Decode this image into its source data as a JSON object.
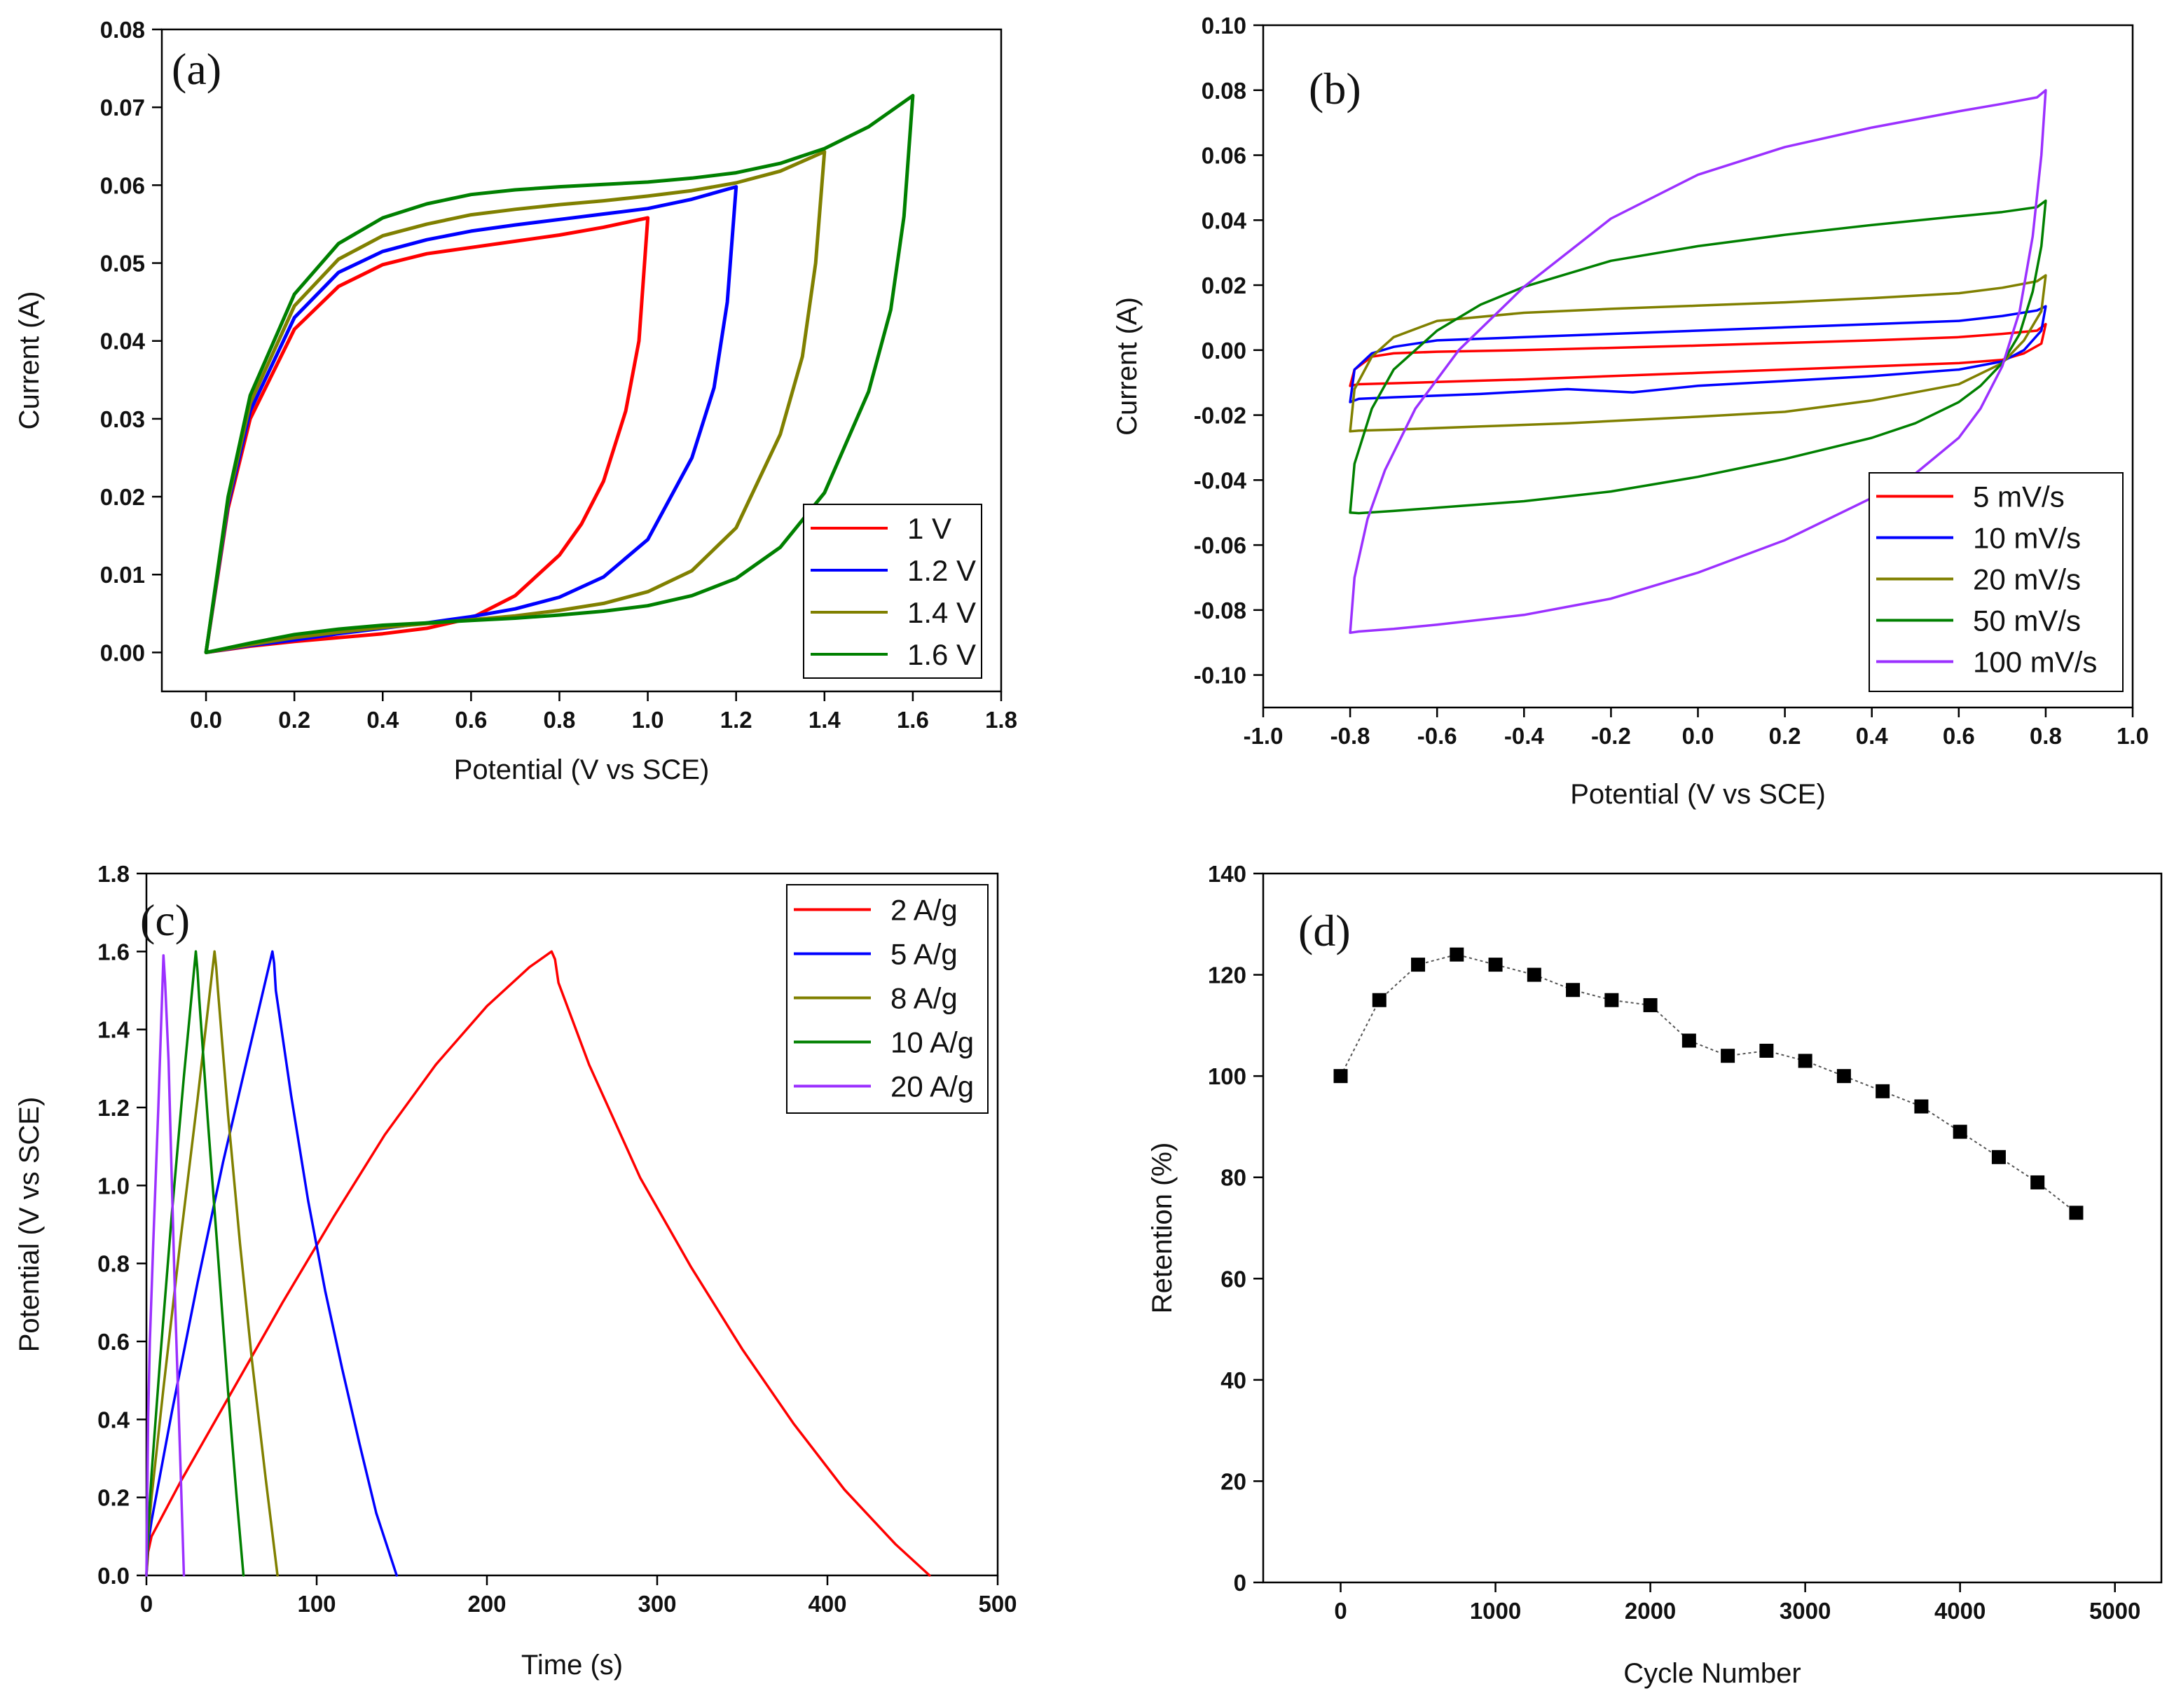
{
  "chart_data": [
    {
      "id": "a",
      "type": "line",
      "panel_label": "(a)",
      "xlabel": "Potential (V vs SCE)",
      "ylabel": "Current (A)",
      "xlim": [
        -0.1,
        1.8
      ],
      "ylim": [
        -0.005,
        0.08
      ],
      "xticks": [
        "0.0",
        "0.2",
        "0.4",
        "0.6",
        "0.8",
        "1.0",
        "1.2",
        "1.4",
        "1.6",
        "1.8"
      ],
      "yticks": [
        "0.00",
        "0.01",
        "0.02",
        "0.03",
        "0.04",
        "0.05",
        "0.06",
        "0.07",
        "0.08"
      ],
      "legend_position": "bottom-right",
      "series": [
        {
          "name": "1 V",
          "color": "#ff0000",
          "vmax": 1.0,
          "x": [
            0,
            0.05,
            0.1,
            0.2,
            0.3,
            0.4,
            0.5,
            0.6,
            0.7,
            0.8,
            0.9,
            1.0,
            0.98,
            0.95,
            0.9,
            0.85,
            0.8,
            0.7,
            0.6,
            0.5,
            0.4,
            0.3,
            0.2,
            0.1,
            0.0
          ],
          "y": [
            0,
            0.0185,
            0.03,
            0.0415,
            0.047,
            0.0498,
            0.0512,
            0.052,
            0.0528,
            0.0536,
            0.0546,
            0.0558,
            0.04,
            0.031,
            0.022,
            0.0165,
            0.0125,
            0.0073,
            0.0044,
            0.0031,
            0.0024,
            0.0019,
            0.0014,
            0.0008,
            0
          ]
        },
        {
          "name": "1.2 V",
          "color": "#0000ff",
          "vmax": 1.2,
          "x": [
            0,
            0.05,
            0.1,
            0.2,
            0.3,
            0.4,
            0.5,
            0.6,
            0.7,
            0.8,
            0.9,
            1.0,
            1.1,
            1.2,
            1.18,
            1.15,
            1.1,
            1.0,
            0.9,
            0.8,
            0.7,
            0.6,
            0.5,
            0.4,
            0.3,
            0.2,
            0.1,
            0.0
          ],
          "y": [
            0,
            0.019,
            0.031,
            0.043,
            0.0488,
            0.0515,
            0.053,
            0.0541,
            0.0549,
            0.0556,
            0.0563,
            0.057,
            0.0582,
            0.0598,
            0.045,
            0.034,
            0.025,
            0.0145,
            0.0097,
            0.0071,
            0.0056,
            0.0046,
            0.0038,
            0.0031,
            0.0024,
            0.0016,
            0.0009,
            0
          ]
        },
        {
          "name": "1.4 V",
          "color": "#808000",
          "vmax": 1.4,
          "x": [
            0,
            0.05,
            0.1,
            0.2,
            0.3,
            0.4,
            0.5,
            0.6,
            0.7,
            0.8,
            0.9,
            1.0,
            1.1,
            1.2,
            1.3,
            1.4,
            1.38,
            1.35,
            1.3,
            1.2,
            1.1,
            1.0,
            0.9,
            0.8,
            0.7,
            0.6,
            0.5,
            0.4,
            0.3,
            0.2,
            0.1,
            0.0
          ],
          "y": [
            0,
            0.0195,
            0.032,
            0.0445,
            0.0505,
            0.0535,
            0.055,
            0.0562,
            0.0569,
            0.0575,
            0.058,
            0.0586,
            0.0593,
            0.0603,
            0.0618,
            0.0643,
            0.05,
            0.038,
            0.028,
            0.016,
            0.0105,
            0.0078,
            0.0063,
            0.0054,
            0.0047,
            0.0042,
            0.0037,
            0.0032,
            0.0026,
            0.0019,
            0.001,
            0
          ]
        },
        {
          "name": "1.6 V",
          "color": "#008000",
          "vmax": 1.6,
          "x": [
            0,
            0.05,
            0.1,
            0.2,
            0.3,
            0.4,
            0.5,
            0.6,
            0.7,
            0.8,
            0.9,
            1.0,
            1.1,
            1.2,
            1.3,
            1.4,
            1.5,
            1.6,
            1.58,
            1.55,
            1.5,
            1.4,
            1.3,
            1.2,
            1.1,
            1.0,
            0.9,
            0.8,
            0.7,
            0.6,
            0.5,
            0.4,
            0.3,
            0.2,
            0.1,
            0.0
          ],
          "y": [
            0,
            0.02,
            0.033,
            0.046,
            0.0525,
            0.0558,
            0.0576,
            0.0588,
            0.0594,
            0.0598,
            0.0601,
            0.0604,
            0.0609,
            0.0616,
            0.0628,
            0.0647,
            0.0675,
            0.0715,
            0.056,
            0.044,
            0.0335,
            0.0205,
            0.0135,
            0.0095,
            0.0073,
            0.006,
            0.0053,
            0.0048,
            0.0044,
            0.0041,
            0.0038,
            0.0035,
            0.003,
            0.0023,
            0.0012,
            0
          ]
        }
      ]
    },
    {
      "id": "b",
      "type": "line",
      "panel_label": "(b)",
      "xlabel": "Potential (V vs SCE)",
      "ylabel": "Current (A)",
      "xlim": [
        -1.0,
        1.0
      ],
      "ylim": [
        -0.11,
        0.1
      ],
      "xticks": [
        "-1.0",
        "-0.8",
        "-0.6",
        "-0.4",
        "-0.2",
        "0.0",
        "0.2",
        "0.4",
        "0.6",
        "0.8",
        "1.0"
      ],
      "yticks": [
        "-0.10",
        "-0.08",
        "-0.06",
        "-0.04",
        "-0.02",
        "0.00",
        "0.02",
        "0.04",
        "0.06",
        "0.08",
        "0.10"
      ],
      "legend_position": "bottom-right",
      "series": [
        {
          "name": "5 mV/s",
          "color": "#ff0000",
          "x": [
            -0.8,
            -0.79,
            -0.75,
            -0.7,
            -0.6,
            -0.4,
            -0.2,
            0.0,
            0.2,
            0.4,
            0.6,
            0.7,
            0.78,
            0.8,
            0.79,
            0.75,
            0.7,
            0.6,
            0.4,
            0.2,
            0.0,
            -0.2,
            -0.4,
            -0.6,
            -0.7,
            -0.78,
            -0.8
          ],
          "y": [
            -0.011,
            -0.006,
            -0.002,
            -0.001,
            -0.0005,
            0.0,
            0.0007,
            0.0014,
            0.0022,
            0.003,
            0.004,
            0.005,
            0.006,
            0.008,
            0.002,
            -0.001,
            -0.003,
            -0.004,
            -0.005,
            -0.006,
            -0.007,
            -0.008,
            -0.009,
            -0.0098,
            -0.0102,
            -0.0105,
            -0.011
          ]
        },
        {
          "name": "10 mV/s",
          "color": "#0000ff",
          "x": [
            -0.8,
            -0.79,
            -0.75,
            -0.7,
            -0.6,
            -0.4,
            -0.2,
            0.0,
            0.2,
            0.4,
            0.6,
            0.7,
            0.78,
            0.8,
            0.79,
            0.75,
            0.7,
            0.6,
            0.4,
            0.2,
            0.0,
            -0.15,
            -0.3,
            -0.5,
            -0.7,
            -0.78,
            -0.8
          ],
          "y": [
            -0.016,
            -0.006,
            -0.001,
            0.001,
            0.003,
            0.004,
            0.005,
            0.006,
            0.007,
            0.008,
            0.009,
            0.0105,
            0.0122,
            0.0135,
            0.006,
            0.0,
            -0.0035,
            -0.006,
            -0.008,
            -0.0095,
            -0.011,
            -0.013,
            -0.012,
            -0.0135,
            -0.0145,
            -0.015,
            -0.016
          ]
        },
        {
          "name": "20 mV/s",
          "color": "#808000",
          "x": [
            -0.8,
            -0.79,
            -0.75,
            -0.7,
            -0.6,
            -0.4,
            -0.2,
            0.0,
            0.2,
            0.4,
            0.6,
            0.7,
            0.78,
            0.8,
            0.79,
            0.75,
            0.7,
            0.6,
            0.4,
            0.2,
            0.0,
            -0.15,
            -0.3,
            -0.5,
            -0.7,
            -0.78,
            -0.8
          ],
          "y": [
            -0.025,
            -0.012,
            -0.002,
            0.004,
            0.009,
            0.0115,
            0.0127,
            0.0137,
            0.0147,
            0.016,
            0.0175,
            0.0192,
            0.0212,
            0.023,
            0.012,
            0.003,
            -0.004,
            -0.0105,
            -0.0155,
            -0.019,
            -0.0205,
            -0.0215,
            -0.0225,
            -0.0235,
            -0.0245,
            -0.0248,
            -0.025
          ]
        },
        {
          "name": "50 mV/s",
          "color": "#008000",
          "x": [
            -0.8,
            -0.79,
            -0.75,
            -0.7,
            -0.6,
            -0.5,
            -0.4,
            -0.2,
            0.0,
            0.2,
            0.4,
            0.6,
            0.7,
            0.78,
            0.8,
            0.79,
            0.77,
            0.74,
            0.7,
            0.65,
            0.6,
            0.5,
            0.4,
            0.2,
            0.0,
            -0.2,
            -0.4,
            -0.6,
            -0.7,
            -0.78,
            -0.8
          ],
          "y": [
            -0.05,
            -0.035,
            -0.018,
            -0.006,
            0.006,
            0.014,
            0.0195,
            0.0275,
            0.032,
            0.0355,
            0.0385,
            0.0412,
            0.0425,
            0.044,
            0.046,
            0.032,
            0.018,
            0.005,
            -0.004,
            -0.011,
            -0.016,
            -0.0225,
            -0.027,
            -0.0335,
            -0.039,
            -0.0435,
            -0.0465,
            -0.0485,
            -0.0495,
            -0.0502,
            -0.05
          ]
        },
        {
          "name": "100 mV/s",
          "color": "#9b30ff",
          "x": [
            -0.8,
            -0.79,
            -0.76,
            -0.72,
            -0.65,
            -0.55,
            -0.4,
            -0.2,
            0.0,
            0.2,
            0.4,
            0.6,
            0.7,
            0.78,
            0.8,
            0.79,
            0.77,
            0.74,
            0.7,
            0.65,
            0.6,
            0.5,
            0.4,
            0.2,
            0.0,
            -0.2,
            -0.4,
            -0.6,
            -0.7,
            -0.78,
            -0.8
          ],
          "y": [
            -0.087,
            -0.07,
            -0.052,
            -0.037,
            -0.018,
            0.0,
            0.0195,
            0.0405,
            0.054,
            0.0625,
            0.0685,
            0.0735,
            0.0758,
            0.0778,
            0.08,
            0.06,
            0.035,
            0.012,
            -0.005,
            -0.018,
            -0.027,
            -0.038,
            -0.0455,
            -0.0585,
            -0.0685,
            -0.0765,
            -0.0815,
            -0.0845,
            -0.0858,
            -0.0866,
            -0.087
          ]
        }
      ]
    },
    {
      "id": "c",
      "type": "line",
      "panel_label": "(c)",
      "xlabel": "Time (s)",
      "ylabel": "Potential (V vs SCE)",
      "xlim": [
        0,
        500
      ],
      "ylim": [
        0,
        1.8
      ],
      "xticks": [
        "0",
        "100",
        "200",
        "300",
        "400",
        "500"
      ],
      "yticks": [
        "0.0",
        "0.2",
        "0.4",
        "0.6",
        "0.8",
        "1.0",
        "1.2",
        "1.4",
        "1.6",
        "1.8"
      ],
      "legend_position": "top-right",
      "series": [
        {
          "name": "2 A/g",
          "color": "#ff0000",
          "x": [
            0,
            1,
            3,
            20,
            50,
            80,
            110,
            140,
            170,
            200,
            225,
            238,
            240,
            242,
            260,
            290,
            320,
            350,
            380,
            410,
            440,
            460
          ],
          "y": [
            0,
            0.06,
            0.1,
            0.24,
            0.47,
            0.7,
            0.92,
            1.13,
            1.31,
            1.46,
            1.56,
            1.6,
            1.58,
            1.52,
            1.31,
            1.02,
            0.79,
            0.58,
            0.39,
            0.22,
            0.08,
            0
          ]
        },
        {
          "name": "5 A/g",
          "color": "#0000ff",
          "x": [
            0,
            1,
            3,
            15,
            30,
            45,
            60,
            74,
            75,
            76,
            85,
            95,
            105,
            115,
            125,
            135,
            147
          ],
          "y": [
            0,
            0.08,
            0.14,
            0.42,
            0.75,
            1.06,
            1.34,
            1.6,
            1.57,
            1.5,
            1.23,
            0.96,
            0.73,
            0.53,
            0.34,
            0.16,
            0
          ]
        },
        {
          "name": "8 A/g",
          "color": "#808000",
          "x": [
            0,
            1,
            3,
            10,
            20,
            30,
            40,
            41,
            42,
            48,
            55,
            62,
            70,
            77
          ],
          "y": [
            0,
            0.1,
            0.2,
            0.48,
            0.86,
            1.22,
            1.6,
            1.56,
            1.5,
            1.18,
            0.85,
            0.55,
            0.25,
            0
          ]
        },
        {
          "name": "10 A/g",
          "color": "#008000",
          "x": [
            0,
            1,
            3,
            8,
            15,
            22,
            29,
            30,
            31,
            36,
            42,
            48,
            53,
            57
          ],
          "y": [
            0,
            0.12,
            0.26,
            0.55,
            0.93,
            1.28,
            1.6,
            1.55,
            1.48,
            1.17,
            0.82,
            0.47,
            0.2,
            0
          ]
        },
        {
          "name": "20 A/g",
          "color": "#9b30ff",
          "x": [
            0,
            1,
            2,
            4,
            7,
            10,
            11,
            13,
            15,
            17,
            20,
            22
          ],
          "y": [
            0,
            0.4,
            0.6,
            0.85,
            1.2,
            1.59,
            1.52,
            1.32,
            1.0,
            0.68,
            0.28,
            0
          ]
        }
      ]
    },
    {
      "id": "d",
      "type": "scatter",
      "panel_label": "(d)",
      "xlabel": "Cycle Number",
      "ylabel": "Retention (%)",
      "xlim": [
        -500,
        5300
      ],
      "ylim": [
        0,
        140
      ],
      "xticks": [
        "0",
        "1000",
        "2000",
        "3000",
        "4000",
        "5000"
      ],
      "yticks": [
        "0",
        "20",
        "40",
        "60",
        "80",
        "100",
        "120",
        "140"
      ],
      "series": [
        {
          "name": "Retention",
          "color": "#000000",
          "x": [
            0,
            250,
            500,
            750,
            1000,
            1250,
            1500,
            1750,
            2000,
            2250,
            2500,
            2750,
            3000,
            3250,
            3500,
            3750,
            4000,
            4250,
            4500,
            4750
          ],
          "y": [
            100,
            115,
            122,
            124,
            122,
            120,
            117,
            115,
            114,
            107,
            104,
            105,
            103,
            100,
            97,
            94,
            89,
            84,
            79,
            73
          ]
        }
      ]
    }
  ]
}
